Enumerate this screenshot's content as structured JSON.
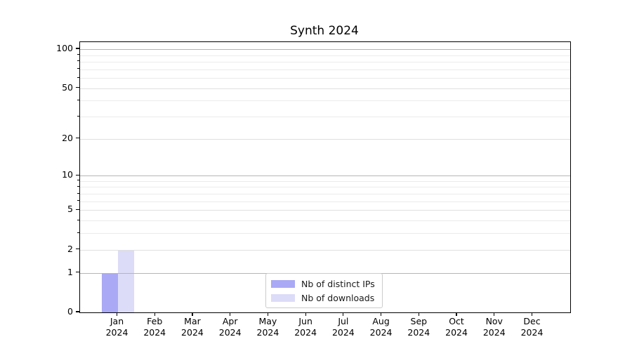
{
  "title": "Synth 2024",
  "legend": {
    "items": [
      {
        "label": "Nb of distinct IPs"
      },
      {
        "label": "Nb of downloads"
      }
    ]
  },
  "chart_data": {
    "type": "bar",
    "title": "Synth 2024",
    "categories": [
      "Jan",
      "Feb",
      "Mar",
      "Apr",
      "May",
      "Jun",
      "Jul",
      "Aug",
      "Sep",
      "Oct",
      "Nov",
      "Dec"
    ],
    "x_tick_second_line": "2024",
    "series": [
      {
        "name": "Nb of distinct IPs",
        "color": "#a9a9f6",
        "values": [
          1,
          0,
          0,
          0,
          0,
          0,
          0,
          0,
          0,
          0,
          0,
          0
        ]
      },
      {
        "name": "Nb of downloads",
        "color": "#dcdcf8",
        "values": [
          2,
          0,
          0,
          0,
          0,
          0,
          0,
          0,
          0,
          0,
          0,
          0
        ]
      }
    ],
    "yscale": "log1p",
    "ylim": [
      0,
      114
    ],
    "y_ticks_labeled": [
      0,
      1,
      2,
      5,
      10,
      20,
      50,
      100
    ],
    "y_ticks_decade": [
      1,
      10,
      100
    ],
    "y_ticks_minor": [
      3,
      4,
      6,
      7,
      8,
      9,
      30,
      40,
      60,
      70,
      80,
      90
    ],
    "grid": "horizontal",
    "grid_above_bars": true,
    "legend_position": "lower center",
    "colors": {
      "grid_decade": "#b5b5b5",
      "grid_labeled": "#e0e0e0",
      "grid_minor": "#ebebeb",
      "axis": "#000000",
      "text": "#000000",
      "background": "#ffffff"
    }
  }
}
